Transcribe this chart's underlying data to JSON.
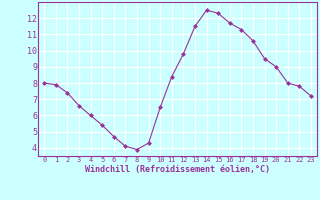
{
  "x": [
    0,
    1,
    2,
    3,
    4,
    5,
    6,
    7,
    8,
    9,
    10,
    11,
    12,
    13,
    14,
    15,
    16,
    17,
    18,
    19,
    20,
    21,
    22,
    23
  ],
  "y": [
    8.0,
    7.9,
    7.4,
    6.6,
    6.0,
    5.4,
    4.7,
    4.1,
    3.9,
    4.3,
    6.5,
    8.4,
    9.8,
    11.5,
    12.5,
    12.3,
    11.7,
    11.3,
    10.6,
    9.5,
    9.0,
    8.0,
    7.8,
    7.2
  ],
  "line_color": "#993399",
  "marker": "D",
  "marker_size": 2,
  "bg_color": "#ccffff",
  "grid_color": "#ffffff",
  "xlabel": "Windchill (Refroidissement éolien,°C)",
  "xlabel_color": "#993399",
  "tick_color": "#993399",
  "xlim": [
    -0.5,
    23.5
  ],
  "ylim": [
    3.5,
    13.0
  ],
  "yticks": [
    4,
    5,
    6,
    7,
    8,
    9,
    10,
    11,
    12
  ],
  "xticks": [
    0,
    1,
    2,
    3,
    4,
    5,
    6,
    7,
    8,
    9,
    10,
    11,
    12,
    13,
    14,
    15,
    16,
    17,
    18,
    19,
    20,
    21,
    22,
    23
  ],
  "xtick_fontsize": 5.0,
  "ytick_fontsize": 6.0,
  "xlabel_fontsize": 6.0
}
